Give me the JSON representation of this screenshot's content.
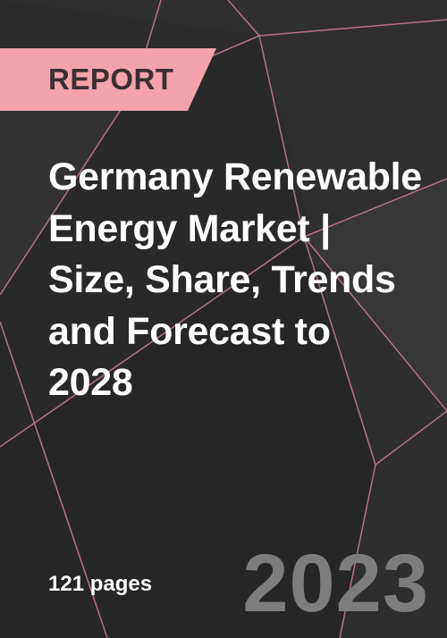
{
  "badge": {
    "label": "REPORT",
    "color": "#f4a3ad"
  },
  "title": "Germany Renewable Energy Market | Size, Share, Trends and Forecast to 2028",
  "pages": "121 pages",
  "year": "2023",
  "colors": {
    "background": "#2c2c2d",
    "line_accent": "#b47583",
    "title_text": "#ffffff",
    "year_text": "#7d7d7e"
  }
}
